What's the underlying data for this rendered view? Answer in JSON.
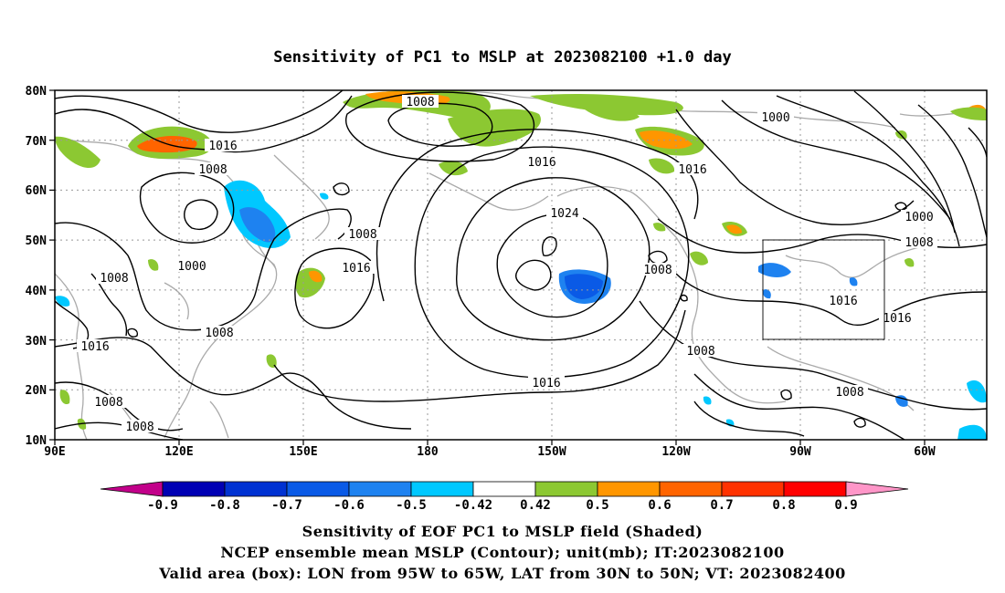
{
  "title": "Sensitivity of PC1 to MSLP at 2023082100 +1.0 day",
  "lat_ticks": [
    "80N",
    "70N",
    "60N",
    "50N",
    "40N",
    "30N",
    "20N",
    "10N"
  ],
  "lon_ticks": [
    "90E",
    "120E",
    "150E",
    "180",
    "150W",
    "120W",
    "90W",
    "60W"
  ],
  "colorbar": {
    "labels": [
      "-0.9",
      "-0.8",
      "-0.7",
      "-0.6",
      "-0.5",
      "-0.42",
      "0.42",
      "0.5",
      "0.6",
      "0.7",
      "0.8",
      "0.9"
    ],
    "colors": [
      "#c2008a",
      "#0000b4",
      "#0032d2",
      "#0a5ae6",
      "#1e82f0",
      "#00c8ff",
      "#ffffff",
      "#8cc832",
      "#ff9600",
      "#ff6400",
      "#ff3200",
      "#ff0000",
      "#ff96c8"
    ]
  },
  "contour_labels": {
    "l1008_top": "1008",
    "l1016_west": "1016",
    "l1008_west": "1008",
    "l1016_pac": "1016",
    "l1024": "1024",
    "l1016_mid": "1016",
    "l1016_ne": "1016",
    "l1000_ne": "1000",
    "l1000_east": "1000",
    "l1008_east": "1008",
    "l1000_asia": "1000",
    "l1008_asia": "1008",
    "l1008_c": "1008",
    "l1016_sw": "1016",
    "l1008_sw": "1008",
    "l1008_sw2": "1008",
    "l1008_jp": "1008",
    "l1008_pac2": "1008",
    "l1016_subtrop": "1016",
    "l1008_mex": "1008",
    "l1008_carib": "1008",
    "l1016_box": "1016",
    "l1016_atl": "1016"
  },
  "valid_box": {
    "lon_from": "95W",
    "lon_to": "65W",
    "lat_from": "30N",
    "lat_to": "50N"
  },
  "captions": [
    "Sensitivity of EOF PC1 to MSLP field (Shaded)",
    "NCEP ensemble mean MSLP (Contour); unit(mb); IT:2023082100",
    "Valid area (box): LON from 95W to 65W, LAT from 30N to 50N; VT: 2023082400"
  ]
}
